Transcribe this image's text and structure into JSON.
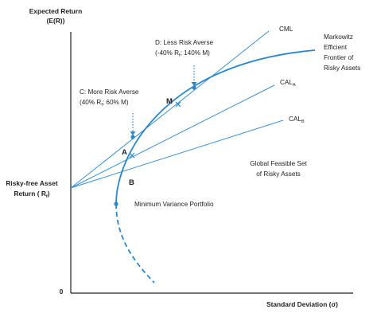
{
  "axes": {
    "y_title_line1": "Expected Return",
    "y_title_line2": "(E(R))",
    "x_title": "Standard Deviation (σ)",
    "rf_line1": "Risky-free Asset",
    "rf_line2_main": "Return ( R",
    "rf_line2_sub": "f",
    "rf_line2_end": ")",
    "origin": "0"
  },
  "lines": {
    "cml": "CML",
    "cal_a_main": "CAL",
    "cal_a_sub": "A",
    "cal_b_main": "CAL",
    "cal_b_sub": "B"
  },
  "frontier": {
    "line1": "Markowitz",
    "line2": "Efficient",
    "line3": "Frontier of",
    "line4": "Risky Assets"
  },
  "annotations": {
    "less_averse_line1": "D: Less Risk Averse",
    "less_averse_line2_a": "(-40% R",
    "less_averse_line2_sub": "f",
    "less_averse_line2_b": "; 140% M)",
    "more_averse_line1": "C: More Risk Averse",
    "more_averse_line2_a": "(40% R",
    "more_averse_line2_sub": "f",
    "more_averse_line2_b": "; 60% M)",
    "feasible_line1": "Global Feasible Set",
    "feasible_line2": "of Risky Assets",
    "mvp": "Minimum Variance Portfolio"
  },
  "points": {
    "m": "M",
    "a": "A",
    "b": "B"
  },
  "colors": {
    "curve": "#2a86c9",
    "line": "#3b8fd0",
    "axis": "#222222",
    "text": "#222222"
  }
}
